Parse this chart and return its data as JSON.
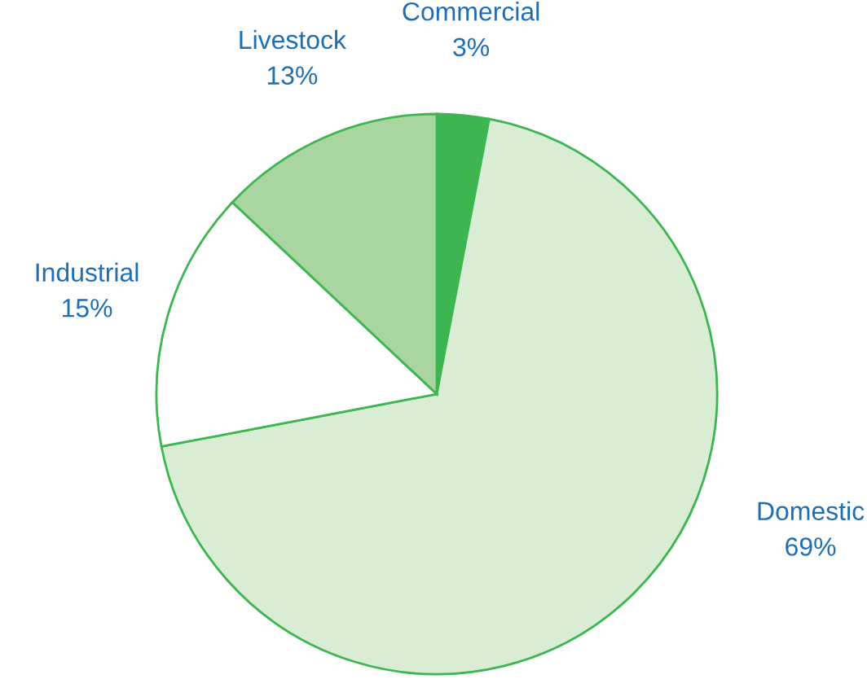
{
  "chart_data": {
    "type": "pie",
    "categories": [
      "Commercial",
      "Domestic",
      "Industrial",
      "Livestock"
    ],
    "values": [
      3,
      69,
      15,
      13
    ],
    "value_labels": [
      "3%",
      "69%",
      "15%",
      "13%"
    ],
    "colors": [
      "#3db551",
      "#d9ecd4",
      "#ffffff",
      "#a8d5a0"
    ],
    "legend": false
  }
}
